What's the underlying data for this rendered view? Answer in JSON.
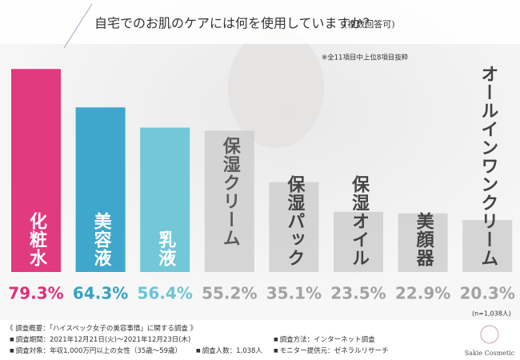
{
  "chart_data": {
    "type": "bar",
    "title": "自宅でのお肌のケアには何を使用していますか？",
    "subtitle": "(複数回答可)",
    "note": "※全11項目中上位8項目抜粋",
    "sample_size": "(n=1,038人)",
    "categories": [
      "化粧水",
      "美容液",
      "乳液",
      "保湿クリーム",
      "保湿パック",
      "保湿オイル",
      "美顔器",
      "オールインワンクリーム"
    ],
    "values": [
      79.3,
      64.3,
      56.4,
      55.2,
      35.1,
      23.5,
      22.9,
      20.3
    ],
    "value_labels": [
      "79.3%",
      "64.3%",
      "56.4%",
      "55.2%",
      "35.1%",
      "23.5%",
      "22.9%",
      "20.3%"
    ],
    "colors": [
      "#df2f78",
      "#35a2c8",
      "#6cc5d6",
      "#cfcfcf",
      "#cfcfcf",
      "#cfcfcf",
      "#cfcfcf",
      "#cfcfcf"
    ],
    "label_colors": [
      "#ffffff",
      "#ffffff",
      "#ffffff",
      "#5a5a5a",
      "#5a5a5a",
      "#5a5a5a",
      "#5a5a5a",
      "#5a5a5a"
    ],
    "value_label_colors": [
      "#df2f78",
      "#35a2c8",
      "#6cc5d6",
      "#a3a3a3",
      "#a3a3a3",
      "#a3a3a3",
      "#a3a3a3",
      "#a3a3a3"
    ]
  },
  "footer": {
    "heading": "《 調査概要：「ハイスペック女子の美容事情」に関する調査 》",
    "items": [
      "調査期間：2021年12月21日(火)～2021年12月23日(木)",
      "調査方法：インターネット調査",
      "調査対象：年収1,000万円以上の女性（35歳～59歳）",
      "調査人数：1,038人",
      "モニター提供元：ゼネラルリサーチ"
    ],
    "brand": "Sakie Cosmetic"
  }
}
